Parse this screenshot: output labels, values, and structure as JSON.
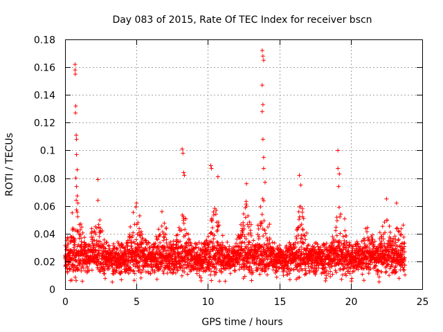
{
  "chart_data": {
    "type": "scatter",
    "title": "Day 083 of 2015, Rate Of TEC Index for receiver bscn",
    "xlabel": "GPS time / hours",
    "ylabel": "ROTI / TECUs",
    "xlim": [
      0,
      25
    ],
    "ylim": [
      0,
      0.18
    ],
    "x_ticks": [
      "0",
      "5",
      "10",
      "15",
      "20",
      "25"
    ],
    "y_ticks": [
      "0",
      "0.02",
      "0.04",
      "0.06",
      "0.08",
      "0.1",
      "0.12",
      "0.14",
      "0.16",
      "0.18"
    ],
    "grid": true,
    "marker": "+",
    "series_color": "#ff0000",
    "data_extent_hours": [
      0,
      23.8
    ],
    "baseline_band": [
      0.01,
      0.035
    ],
    "spikes": [
      {
        "x": 0.5,
        "y": 0.055
      },
      {
        "x": 0.7,
        "y": 0.162
      },
      {
        "x": 0.7,
        "y": 0.158
      },
      {
        "x": 0.72,
        "y": 0.155
      },
      {
        "x": 0.75,
        "y": 0.132
      },
      {
        "x": 0.73,
        "y": 0.127
      },
      {
        "x": 0.78,
        "y": 0.111
      },
      {
        "x": 0.8,
        "y": 0.108
      },
      {
        "x": 0.8,
        "y": 0.097
      },
      {
        "x": 0.85,
        "y": 0.086
      },
      {
        "x": 0.75,
        "y": 0.08
      },
      {
        "x": 0.8,
        "y": 0.074
      },
      {
        "x": 0.9,
        "y": 0.062
      },
      {
        "x": 2.3,
        "y": 0.079
      },
      {
        "x": 2.3,
        "y": 0.064
      },
      {
        "x": 5.0,
        "y": 0.062
      },
      {
        "x": 8.2,
        "y": 0.101
      },
      {
        "x": 8.25,
        "y": 0.098
      },
      {
        "x": 8.3,
        "y": 0.084
      },
      {
        "x": 8.35,
        "y": 0.082
      },
      {
        "x": 10.2,
        "y": 0.089
      },
      {
        "x": 10.25,
        "y": 0.087
      },
      {
        "x": 10.7,
        "y": 0.081
      },
      {
        "x": 12.7,
        "y": 0.076
      },
      {
        "x": 13.8,
        "y": 0.172
      },
      {
        "x": 13.85,
        "y": 0.168
      },
      {
        "x": 13.9,
        "y": 0.165
      },
      {
        "x": 13.8,
        "y": 0.147
      },
      {
        "x": 13.85,
        "y": 0.133
      },
      {
        "x": 13.8,
        "y": 0.128
      },
      {
        "x": 13.85,
        "y": 0.108
      },
      {
        "x": 13.9,
        "y": 0.095
      },
      {
        "x": 13.9,
        "y": 0.087
      },
      {
        "x": 14.0,
        "y": 0.077
      },
      {
        "x": 16.4,
        "y": 0.082
      },
      {
        "x": 16.5,
        "y": 0.075
      },
      {
        "x": 19.1,
        "y": 0.1
      },
      {
        "x": 19.1,
        "y": 0.087
      },
      {
        "x": 19.2,
        "y": 0.083
      },
      {
        "x": 19.15,
        "y": 0.074
      },
      {
        "x": 22.5,
        "y": 0.065
      },
      {
        "x": 23.2,
        "y": 0.062
      }
    ],
    "active_regions": [
      {
        "center": 0.8,
        "height": 0.045
      },
      {
        "center": 2.3,
        "height": 0.03
      },
      {
        "center": 5.0,
        "height": 0.035
      },
      {
        "center": 6.8,
        "height": 0.03
      },
      {
        "center": 8.2,
        "height": 0.035
      },
      {
        "center": 10.5,
        "height": 0.04
      },
      {
        "center": 12.6,
        "height": 0.04
      },
      {
        "center": 13.9,
        "height": 0.045
      },
      {
        "center": 16.5,
        "height": 0.04
      },
      {
        "center": 19.2,
        "height": 0.04
      },
      {
        "center": 21.2,
        "height": 0.03
      },
      {
        "center": 22.5,
        "height": 0.035
      },
      {
        "center": 23.4,
        "height": 0.025
      }
    ]
  }
}
